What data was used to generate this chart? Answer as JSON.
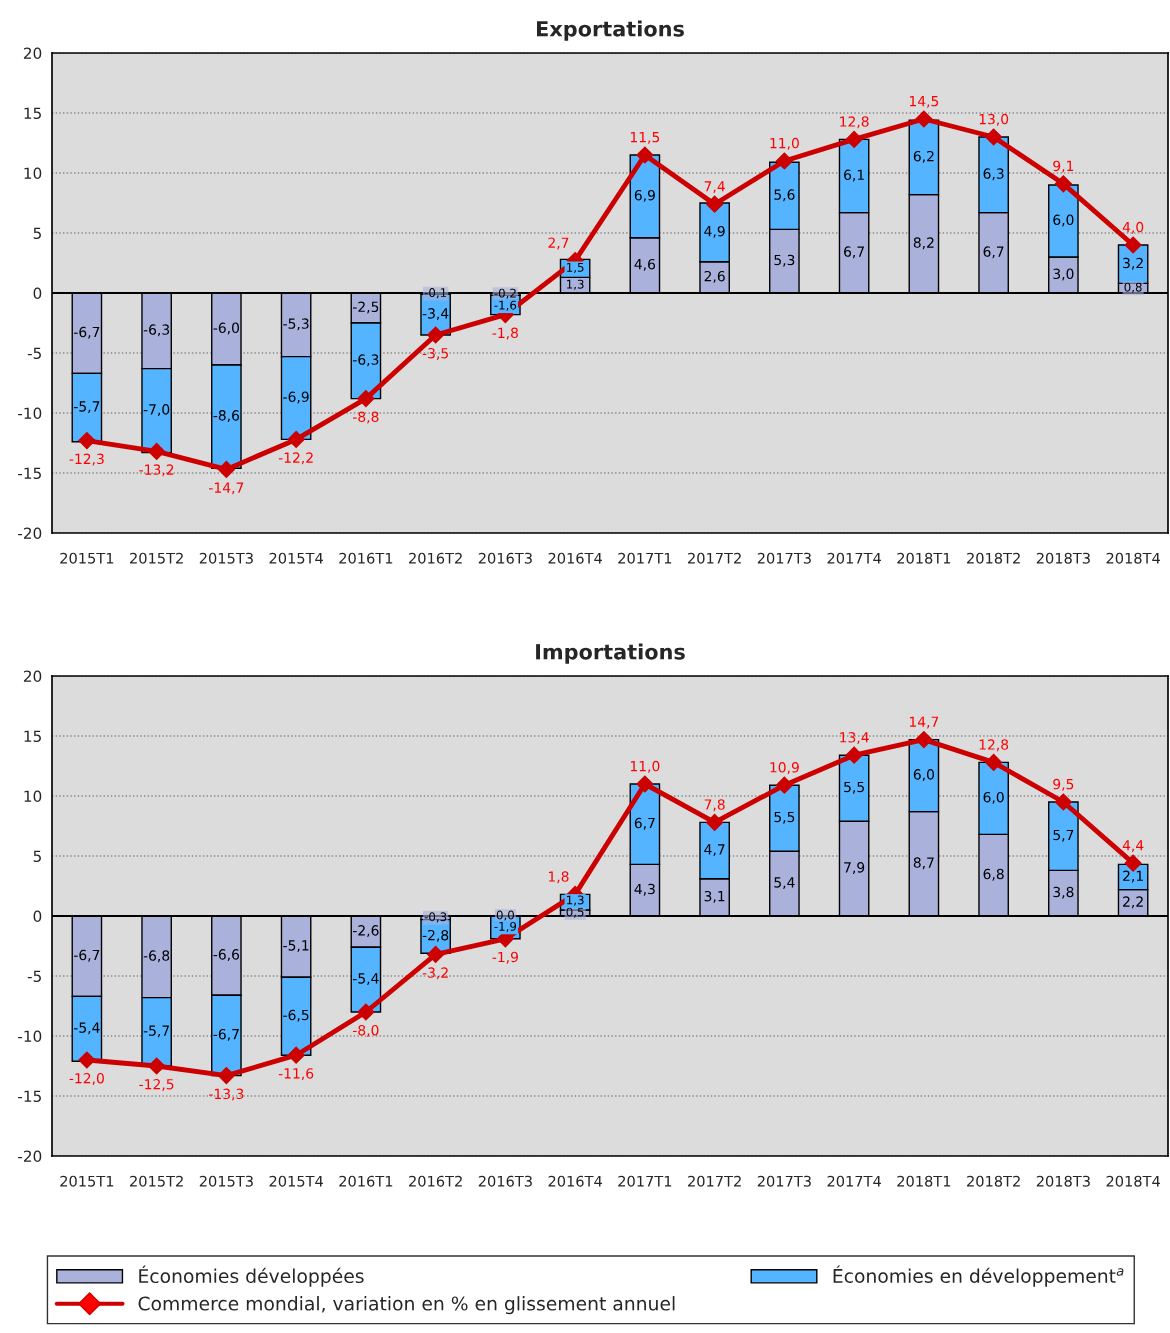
{
  "chart_data": [
    {
      "type": "bar",
      "title": "Exportations",
      "stacked": true,
      "categories": [
        "2015T1",
        "2015T2",
        "2015T3",
        "2015T4",
        "2016T1",
        "2016T2",
        "2016T3",
        "2016T4",
        "2017T1",
        "2017T2",
        "2017T3",
        "2017T4",
        "2018T1",
        "2018T2",
        "2018T3",
        "2018T4"
      ],
      "ylim": [
        -20,
        20
      ],
      "yticks": [
        -20,
        -15,
        -10,
        -5,
        0,
        5,
        10,
        15,
        20
      ],
      "grid": "y",
      "series": [
        {
          "color": "#aab2dc",
          "values": [
            -6.7,
            -6.3,
            -6.0,
            -5.3,
            -2.5,
            -0.1,
            -0.2,
            1.3,
            4.6,
            2.6,
            5.3,
            6.7,
            8.2,
            6.7,
            3.0,
            0.8
          ],
          "value_labels": [
            "-6,7",
            "-6,3",
            "-6,0",
            "-5,3",
            "-2,5",
            "-0,1",
            "-0,2",
            "1,3",
            "4,6",
            "2,6",
            "5,3",
            "6,7",
            "8,2",
            "6,7",
            "3,0",
            "0,8"
          ]
        },
        {
          "color": "#55b4ff",
          "values": [
            -5.7,
            -7.0,
            -8.6,
            -6.9,
            -6.3,
            -3.4,
            -1.6,
            1.5,
            6.9,
            4.9,
            5.6,
            6.1,
            6.2,
            6.3,
            6.0,
            3.2
          ],
          "value_labels": [
            "-5,7",
            "-7,0",
            "-8,6",
            "-6,9",
            "-6,3",
            "-3,4",
            "-1,6",
            "1,5",
            "6,9",
            "4,9",
            "5,6",
            "6,1",
            "6,2",
            "6,3",
            "6,0",
            "3,2"
          ]
        },
        {
          "type": "line",
          "color": "#cc0000",
          "marker": "diamond",
          "line_style": "solid",
          "values": [
            -12.3,
            -13.2,
            -14.7,
            -12.2,
            -8.8,
            -3.5,
            -1.8,
            2.7,
            11.5,
            7.4,
            11.0,
            12.8,
            14.5,
            13.0,
            9.1,
            4.0
          ],
          "value_labels": [
            "-12,3",
            "-13,2",
            "-14,7",
            "-12,2",
            "-8,8",
            "-3,5",
            "-1,8",
            "2,7",
            "11,5",
            "7,4",
            "11,0",
            "12,8",
            "14,5",
            "13,0",
            "9,1",
            "4,0"
          ]
        }
      ]
    },
    {
      "type": "bar",
      "title": "Importations",
      "stacked": true,
      "categories": [
        "2015T1",
        "2015T2",
        "2015T3",
        "2015T4",
        "2016T1",
        "2016T2",
        "2016T3",
        "2016T4",
        "2017T1",
        "2017T2",
        "2017T3",
        "2017T4",
        "2018T1",
        "2018T2",
        "2018T3",
        "2018T4"
      ],
      "ylim": [
        -20,
        20
      ],
      "yticks": [
        -20,
        -15,
        -10,
        -5,
        0,
        5,
        10,
        15,
        20
      ],
      "grid": "y",
      "legend": "bottom",
      "series": [
        {
          "name": "Économies développées",
          "color": "#aab2dc",
          "values": [
            -6.7,
            -6.8,
            -6.6,
            -5.1,
            -2.6,
            -0.3,
            0.0,
            0.5,
            4.3,
            3.1,
            5.4,
            7.9,
            8.7,
            6.8,
            3.8,
            2.2
          ],
          "value_labels": [
            "-6,7",
            "-6,8",
            "-6,6",
            "-5,1",
            "-2,6",
            "-0,3",
            "0,0",
            "0,5",
            "4,3",
            "3,1",
            "5,4",
            "7,9",
            "8,7",
            "6,8",
            "3,8",
            "2,2"
          ]
        },
        {
          "name": "Économies en développement$^{a}$",
          "color": "#55b4ff",
          "values": [
            -5.4,
            -5.7,
            -6.7,
            -6.5,
            -5.4,
            -2.8,
            -1.9,
            1.3,
            6.7,
            4.7,
            5.5,
            5.5,
            6.0,
            6.0,
            5.7,
            2.1
          ],
          "value_labels": [
            "-5,4",
            "-5,7",
            "-6,7",
            "-6,5",
            "-5,4",
            "-2,8",
            "-1,9",
            "1,3",
            "6,7",
            "4,7",
            "5,5",
            "5,5",
            "6,0",
            "6,0",
            "5,7",
            "2,1"
          ]
        },
        {
          "name": "Commerce mondial, variation en % en glissement annuel",
          "type": "line",
          "color": "#cc0000",
          "marker": "diamond",
          "line_style": "solid",
          "values": [
            -12.0,
            -12.5,
            -13.3,
            -11.6,
            -8.0,
            -3.2,
            -1.9,
            1.8,
            11.0,
            7.8,
            10.9,
            13.4,
            14.7,
            12.8,
            9.5,
            4.4
          ],
          "value_labels": [
            "-12,0",
            "-12,5",
            "-13,3",
            "-11,6",
            "-8,0",
            "-3,2",
            "-1,9",
            "1,8",
            "11,0",
            "7,8",
            "10,9",
            "13,4",
            "14,7",
            "12,8",
            "9,5",
            "4,4"
          ]
        }
      ]
    }
  ]
}
